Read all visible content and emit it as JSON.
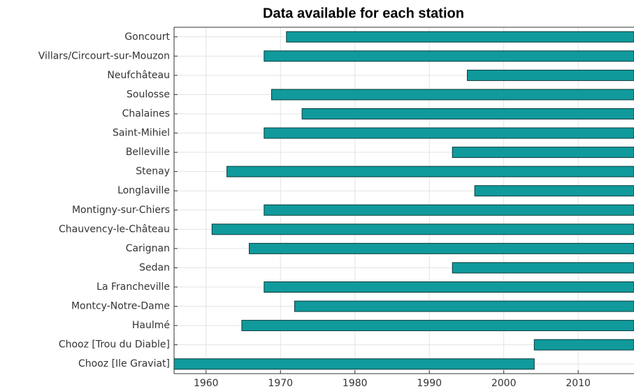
{
  "chart_data": {
    "type": "range_bar",
    "title": "Data available for each station",
    "categories": [
      "Goncourt",
      "Villars/Circourt-sur-Mouzon",
      "Neufchâteau",
      "Soulosse",
      "Chalaines",
      "Saint-Mihiel",
      "Belleville",
      "Stenay",
      "Longlaville",
      "Montigny-sur-Chiers",
      "Chauvency-le-Château",
      "Carignan",
      "Sedan",
      "La Francheville",
      "Montcy-Notre-Dame",
      "Haulmé",
      "Chooz [Trou du Diable]",
      "Chooz [Ile Graviat]"
    ],
    "start": [
      1970.8,
      1967.8,
      1995.1,
      1968.8,
      1972.9,
      1967.8,
      1993.1,
      1962.8,
      1996.1,
      1967.8,
      1960.8,
      1965.8,
      1993.1,
      1967.8,
      1971.9,
      1964.8,
      2004.1,
      1955.7
    ],
    "end": [
      2017.5,
      2017.5,
      2017.5,
      2017.5,
      2017.5,
      2017.5,
      2017.5,
      2017.5,
      2017.5,
      2017.5,
      2017.5,
      2017.5,
      2017.5,
      2017.5,
      2017.5,
      2017.5,
      2017.5,
      2004.1
    ],
    "color": "#109a9c",
    "xlim": [
      1955.7,
      2017.5
    ],
    "xticks": [
      1960,
      1970,
      1980,
      1990,
      2000,
      2010
    ],
    "grid": true
  }
}
